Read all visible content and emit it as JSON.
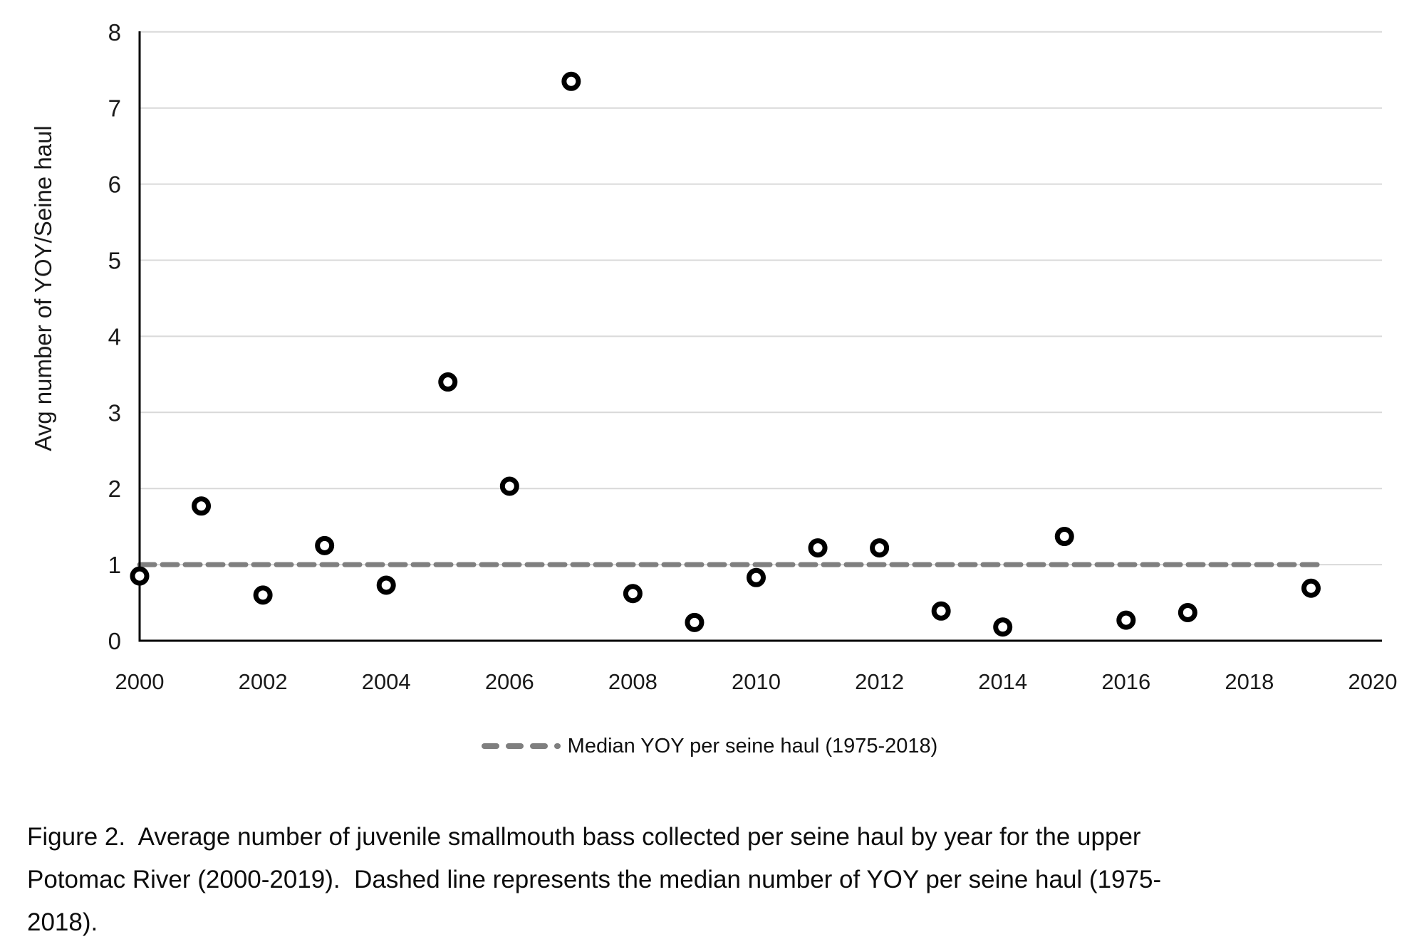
{
  "chart_data": {
    "type": "scatter",
    "title": "",
    "xlabel": "",
    "ylabel": "Avg number of YOY/Seine haul",
    "xlim": [
      2000,
      2020
    ],
    "ylim": [
      0,
      8
    ],
    "x_ticks": [
      2000,
      2002,
      2004,
      2006,
      2008,
      2010,
      2012,
      2014,
      2016,
      2018,
      2020
    ],
    "y_ticks": [
      0,
      1,
      2,
      3,
      4,
      5,
      6,
      7,
      8
    ],
    "grid": "horizontal",
    "legend_position": "bottom-center",
    "points": [
      {
        "year": 2000,
        "value": 0.85
      },
      {
        "year": 2001,
        "value": 1.77
      },
      {
        "year": 2002,
        "value": 0.6
      },
      {
        "year": 2003,
        "value": 1.25
      },
      {
        "year": 2004,
        "value": 0.73
      },
      {
        "year": 2005,
        "value": 3.4
      },
      {
        "year": 2006,
        "value": 2.03
      },
      {
        "year": 2007,
        "value": 7.35
      },
      {
        "year": 2008,
        "value": 0.62
      },
      {
        "year": 2009,
        "value": 0.24
      },
      {
        "year": 2010,
        "value": 0.83
      },
      {
        "year": 2011,
        "value": 1.22
      },
      {
        "year": 2012,
        "value": 1.22
      },
      {
        "year": 2013,
        "value": 0.39
      },
      {
        "year": 2014,
        "value": 0.18
      },
      {
        "year": 2015,
        "value": 1.37
      },
      {
        "year": 2016,
        "value": 0.27
      },
      {
        "year": 2017,
        "value": 0.37
      },
      {
        "year": 2019,
        "value": 0.69
      }
    ],
    "median_line": {
      "value": 1,
      "style": "dashed",
      "color": "#7f7f7f"
    },
    "marker": {
      "shape": "open-circle",
      "stroke_color": "#000000",
      "fill_color": "#ffffff"
    },
    "colors": {
      "gridline": "#d9d9d9",
      "axis": "#000000",
      "tick_label": "#1a1a1a"
    }
  },
  "legend": {
    "label": "Median YOY per seine haul (1975-2018)"
  },
  "caption": {
    "lines": [
      "Figure 2.  Average number of juvenile smallmouth bass collected per seine haul by year for the upper",
      "Potomac River (2000-2019).  Dashed line represents the median number of YOY per seine haul (1975-",
      "2018)."
    ]
  }
}
